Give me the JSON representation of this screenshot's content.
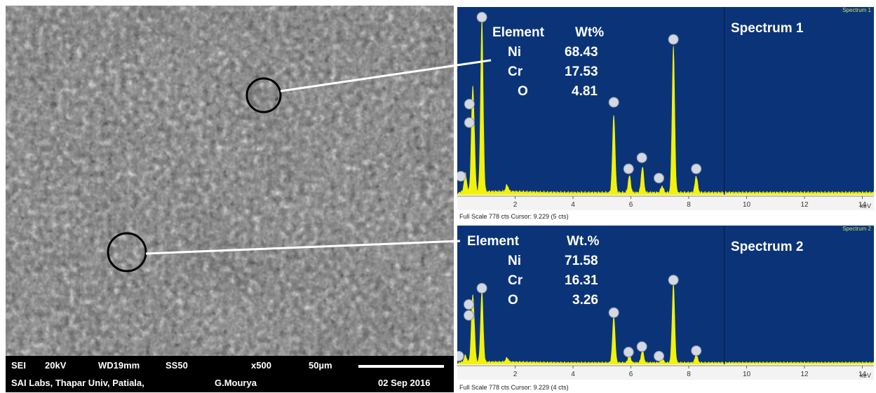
{
  "sem": {
    "info": {
      "mode": "SEI",
      "voltage": "20kV",
      "wd": "WD19mm",
      "ss": "SS50",
      "mag": "x500",
      "scale": "50µm",
      "lab": "SAI Labs, Thapar Univ, Patiala,",
      "operator": "G.Mourya",
      "date": "02 Sep 2016"
    }
  },
  "chart_data": [
    {
      "type": "line",
      "title": "Spectrum 1",
      "tag": "Spectrum 1",
      "xlabel": "keV",
      "xlim": [
        0,
        14.4
      ],
      "x_ticks": [
        2,
        4,
        6,
        8,
        10,
        12,
        14
      ],
      "footer": "Full Scale 778 cts Cursor: 9.229  (5 cts)",
      "cursor_kev": 9.229,
      "composition": {
        "header": [
          "Element",
          "Wt%"
        ],
        "rows": [
          {
            "element": "Ni",
            "wt": "68.43"
          },
          {
            "element": "Cr",
            "wt": "17.53"
          },
          {
            "element": "O",
            "wt": "4.81"
          }
        ]
      },
      "peaks": [
        {
          "kev": 0.28,
          "height": 0.1
        },
        {
          "kev": 0.52,
          "height": 0.4
        },
        {
          "kev": 0.57,
          "height": 0.26
        },
        {
          "kev": 0.85,
          "height": 0.93
        },
        {
          "kev": 1.72,
          "height": 0.035
        },
        {
          "kev": 5.41,
          "height": 0.42
        },
        {
          "kev": 5.95,
          "height": 0.09
        },
        {
          "kev": 6.4,
          "height": 0.14
        },
        {
          "kev": 7.08,
          "height": 0.035
        },
        {
          "kev": 7.47,
          "height": 0.79
        },
        {
          "kev": 8.26,
          "height": 0.09
        }
      ],
      "peak_markers": [
        {
          "kev": 0.12,
          "height": 0.1
        },
        {
          "kev": 0.42,
          "height": 0.49
        },
        {
          "kev": 0.42,
          "height": 0.39
        },
        {
          "kev": 0.85,
          "height": 0.96
        },
        {
          "kev": 5.41,
          "height": 0.5
        },
        {
          "kev": 5.92,
          "height": 0.14
        },
        {
          "kev": 6.38,
          "height": 0.2
        },
        {
          "kev": 6.97,
          "height": 0.09
        },
        {
          "kev": 7.47,
          "height": 0.84
        },
        {
          "kev": 8.26,
          "height": 0.14
        }
      ]
    },
    {
      "type": "line",
      "title": "Spectrum 2",
      "tag": "Spectrum 2",
      "xlabel": "keV",
      "xlim": [
        0,
        14.4
      ],
      "x_ticks": [
        2,
        4,
        6,
        8,
        10,
        12,
        14
      ],
      "footer": "Full Scale 778 cts Cursor: 9.229  (4 cts)",
      "cursor_kev": 9.229,
      "composition": {
        "header": [
          "Element",
          "Wt.%"
        ],
        "rows": [
          {
            "element": "Ni",
            "wt": "71.58"
          },
          {
            "element": "Cr",
            "wt": "16.31"
          },
          {
            "element": "O",
            "wt": "3.26"
          }
        ]
      },
      "peaks": [
        {
          "kev": 0.28,
          "height": 0.05
        },
        {
          "kev": 0.52,
          "height": 0.35
        },
        {
          "kev": 0.57,
          "height": 0.22
        },
        {
          "kev": 0.85,
          "height": 0.52
        },
        {
          "kev": 1.72,
          "height": 0.03
        },
        {
          "kev": 5.41,
          "height": 0.34
        },
        {
          "kev": 5.95,
          "height": 0.06
        },
        {
          "kev": 6.4,
          "height": 0.09
        },
        {
          "kev": 7.08,
          "height": 0.03
        },
        {
          "kev": 7.47,
          "height": 0.58
        },
        {
          "kev": 8.26,
          "height": 0.06
        }
      ],
      "peak_markers": [
        {
          "kev": 0.05,
          "height": 0.06
        },
        {
          "kev": 0.4,
          "height": 0.44
        },
        {
          "kev": 0.4,
          "height": 0.36
        },
        {
          "kev": 0.85,
          "height": 0.56
        },
        {
          "kev": 5.41,
          "height": 0.38
        },
        {
          "kev": 5.92,
          "height": 0.09
        },
        {
          "kev": 6.38,
          "height": 0.13
        },
        {
          "kev": 6.97,
          "height": 0.06
        },
        {
          "kev": 7.47,
          "height": 0.62
        },
        {
          "kev": 8.26,
          "height": 0.1
        }
      ]
    }
  ]
}
